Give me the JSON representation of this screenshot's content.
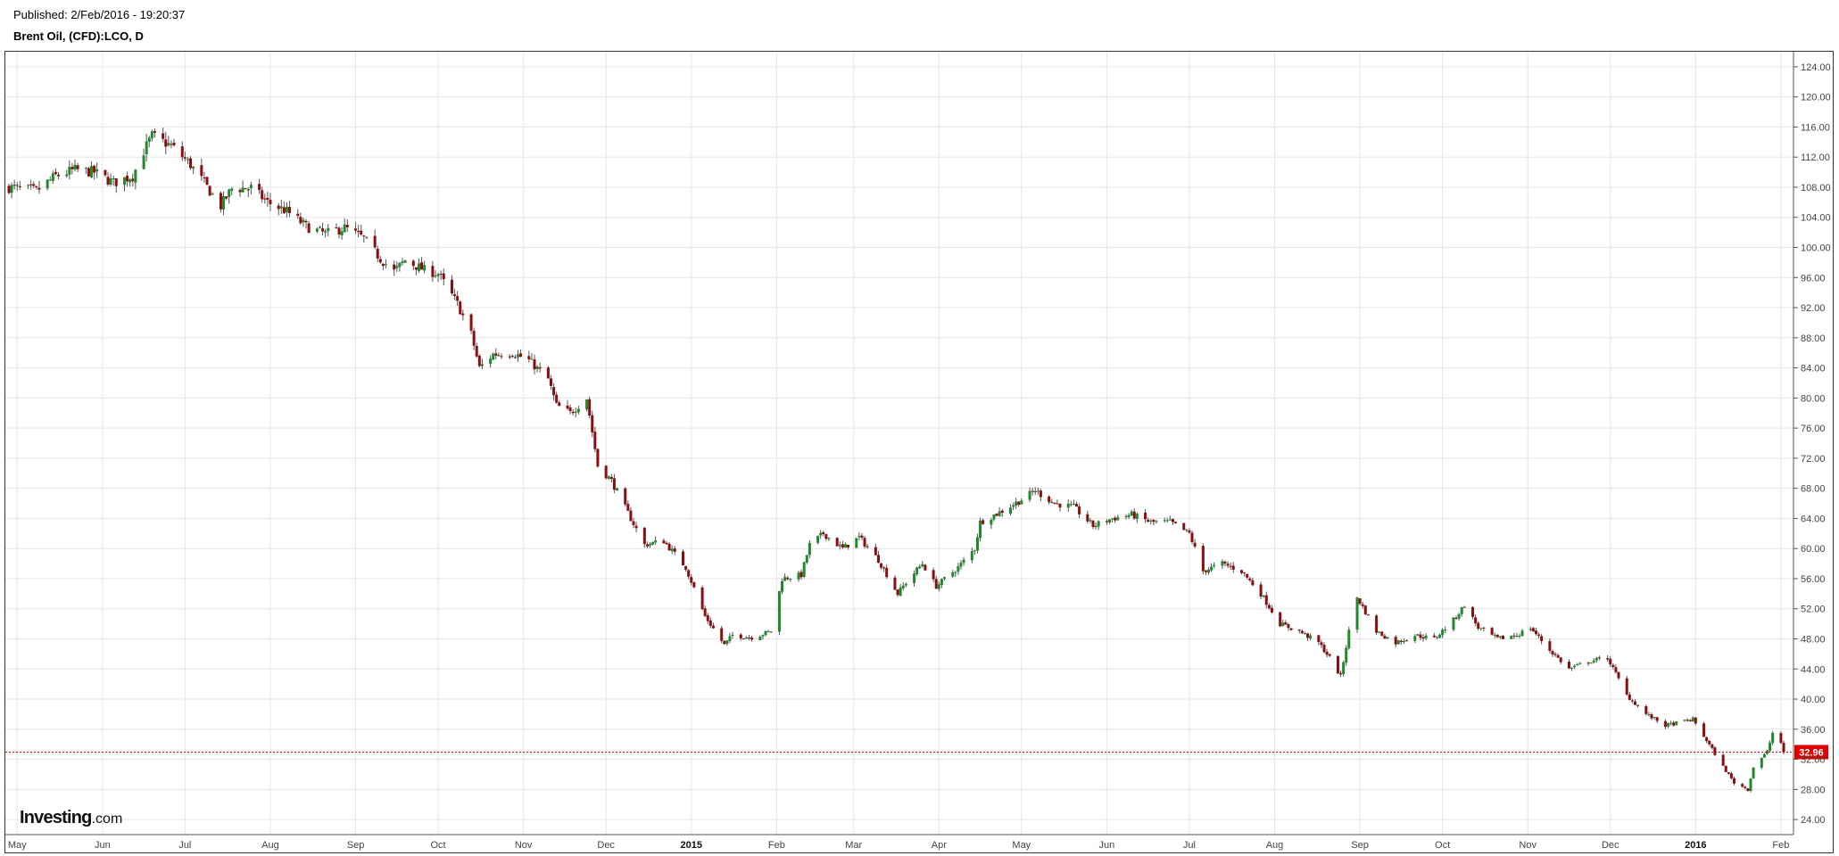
{
  "header": {
    "published": "Published: 2/Feb/2016 - 19:20:37",
    "symbol": "Brent Oil, (CFD):LCO, D"
  },
  "logo": {
    "brand": "Investing",
    "suffix": ".com"
  },
  "colors": {
    "up": "#1f8a2c",
    "down": "#8b0d0d",
    "grid": "#e6e6e6",
    "last_price": "#e00000"
  },
  "chart_data": {
    "type": "candlestick",
    "title": "Brent Oil, (CFD):LCO, D",
    "interval": "D",
    "ylim": [
      22,
      126
    ],
    "y_ticks": [
      "24.00",
      "28.00",
      "32.00",
      "36.00",
      "40.00",
      "44.00",
      "48.00",
      "52.00",
      "56.00",
      "60.00",
      "64.00",
      "68.00",
      "72.00",
      "76.00",
      "80.00",
      "84.00",
      "88.00",
      "92.00",
      "96.00",
      "100.00",
      "104.00",
      "108.00",
      "112.00",
      "116.00",
      "120.00",
      "124.00"
    ],
    "x_ticks": [
      {
        "label": "May",
        "date": "2014-05-01",
        "year": false
      },
      {
        "label": "Jun",
        "date": "2014-06-01",
        "year": false
      },
      {
        "label": "Jul",
        "date": "2014-07-01",
        "year": false
      },
      {
        "label": "Aug",
        "date": "2014-08-01",
        "year": false
      },
      {
        "label": "Sep",
        "date": "2014-09-01",
        "year": false
      },
      {
        "label": "Oct",
        "date": "2014-10-01",
        "year": false
      },
      {
        "label": "Nov",
        "date": "2014-11-01",
        "year": false
      },
      {
        "label": "Dec",
        "date": "2014-12-01",
        "year": false
      },
      {
        "label": "2015",
        "date": "2015-01-01",
        "year": true
      },
      {
        "label": "Feb",
        "date": "2015-02-01",
        "year": false
      },
      {
        "label": "Mar",
        "date": "2015-03-01",
        "year": false
      },
      {
        "label": "Apr",
        "date": "2015-04-01",
        "year": false
      },
      {
        "label": "May",
        "date": "2015-05-01",
        "year": false
      },
      {
        "label": "Jun",
        "date": "2015-06-01",
        "year": false
      },
      {
        "label": "Jul",
        "date": "2015-07-01",
        "year": false
      },
      {
        "label": "Aug",
        "date": "2015-08-01",
        "year": false
      },
      {
        "label": "Sep",
        "date": "2015-09-01",
        "year": false
      },
      {
        "label": "Oct",
        "date": "2015-10-01",
        "year": false
      },
      {
        "label": "Nov",
        "date": "2015-11-01",
        "year": false
      },
      {
        "label": "Dec",
        "date": "2015-12-01",
        "year": false
      },
      {
        "label": "2016",
        "date": "2016-01-01",
        "year": true
      },
      {
        "label": "Feb",
        "date": "2016-02-01",
        "year": false
      }
    ],
    "date_range": [
      "2014-04-28",
      "2016-02-02"
    ],
    "close_series": [
      [
        "2014-04-28",
        108.0
      ],
      [
        "2014-05-08",
        107.5
      ],
      [
        "2014-05-15",
        109.5
      ],
      [
        "2014-05-22",
        110.3
      ],
      [
        "2014-05-29",
        110.0
      ],
      [
        "2014-06-05",
        108.6
      ],
      [
        "2014-06-12",
        109.5
      ],
      [
        "2014-06-16",
        112.8
      ],
      [
        "2014-06-19",
        114.8
      ],
      [
        "2014-06-26",
        113.5
      ],
      [
        "2014-07-03",
        111.0
      ],
      [
        "2014-07-10",
        107.5
      ],
      [
        "2014-07-14",
        105.5
      ],
      [
        "2014-07-18",
        107.8
      ],
      [
        "2014-07-25",
        107.9
      ],
      [
        "2014-07-31",
        106.0
      ],
      [
        "2014-08-07",
        104.8
      ],
      [
        "2014-08-14",
        102.8
      ],
      [
        "2014-08-21",
        101.8
      ],
      [
        "2014-08-28",
        102.6
      ],
      [
        "2014-09-04",
        101.2
      ],
      [
        "2014-09-10",
        98.5
      ],
      [
        "2014-09-15",
        96.8
      ],
      [
        "2014-09-19",
        98.3
      ],
      [
        "2014-09-26",
        97.0
      ],
      [
        "2014-10-01",
        96.5
      ],
      [
        "2014-10-08",
        92.5
      ],
      [
        "2014-10-13",
        88.5
      ],
      [
        "2014-10-16",
        84.0
      ],
      [
        "2014-10-21",
        85.8
      ],
      [
        "2014-10-28",
        86.0
      ],
      [
        "2014-11-03",
        85.0
      ],
      [
        "2014-11-10",
        82.5
      ],
      [
        "2014-11-13",
        79.0
      ],
      [
        "2014-11-18",
        78.0
      ],
      [
        "2014-11-24",
        80.0
      ],
      [
        "2014-11-28",
        71.0
      ],
      [
        "2014-12-03",
        69.0
      ],
      [
        "2014-12-10",
        64.0
      ],
      [
        "2014-12-15",
        60.5
      ],
      [
        "2014-12-22",
        61.0
      ],
      [
        "2014-12-30",
        57.5
      ],
      [
        "2015-01-06",
        51.0
      ],
      [
        "2015-01-13",
        47.2
      ],
      [
        "2015-01-16",
        48.5
      ],
      [
        "2015-01-23",
        48.2
      ],
      [
        "2015-01-30",
        49.0
      ],
      [
        "2015-02-03",
        56.0
      ],
      [
        "2015-02-10",
        56.5
      ],
      [
        "2015-02-13",
        60.5
      ],
      [
        "2015-02-18",
        62.0
      ],
      [
        "2015-02-25",
        60.0
      ],
      [
        "2015-03-03",
        61.5
      ],
      [
        "2015-03-10",
        58.5
      ],
      [
        "2015-03-17",
        54.0
      ],
      [
        "2015-03-20",
        55.5
      ],
      [
        "2015-03-26",
        58.0
      ],
      [
        "2015-03-31",
        55.0
      ],
      [
        "2015-04-08",
        57.5
      ],
      [
        "2015-04-14",
        60.0
      ],
      [
        "2015-04-16",
        63.5
      ],
      [
        "2015-04-24",
        65.0
      ],
      [
        "2015-05-01",
        66.5
      ],
      [
        "2015-05-06",
        67.7
      ],
      [
        "2015-05-13",
        66.0
      ],
      [
        "2015-05-20",
        65.5
      ],
      [
        "2015-05-27",
        63.0
      ],
      [
        "2015-06-03",
        64.0
      ],
      [
        "2015-06-10",
        64.5
      ],
      [
        "2015-06-17",
        63.5
      ],
      [
        "2015-06-24",
        63.5
      ],
      [
        "2015-07-01",
        62.0
      ],
      [
        "2015-07-06",
        57.0
      ],
      [
        "2015-07-13",
        58.0
      ],
      [
        "2015-07-20",
        57.0
      ],
      [
        "2015-07-27",
        54.0
      ],
      [
        "2015-08-03",
        50.0
      ],
      [
        "2015-08-10",
        49.0
      ],
      [
        "2015-08-17",
        47.5
      ],
      [
        "2015-08-21",
        45.5
      ],
      [
        "2015-08-25",
        43.0
      ],
      [
        "2015-08-28",
        49.0
      ],
      [
        "2015-08-31",
        53.5
      ],
      [
        "2015-09-07",
        49.0
      ],
      [
        "2015-09-14",
        47.5
      ],
      [
        "2015-09-21",
        48.5
      ],
      [
        "2015-09-28",
        48.0
      ],
      [
        "2015-10-05",
        50.5
      ],
      [
        "2015-10-09",
        52.5
      ],
      [
        "2015-10-14",
        49.5
      ],
      [
        "2015-10-21",
        48.0
      ],
      [
        "2015-10-28",
        48.5
      ],
      [
        "2015-11-02",
        49.5
      ],
      [
        "2015-11-09",
        46.5
      ],
      [
        "2015-11-16",
        44.0
      ],
      [
        "2015-11-23",
        45.0
      ],
      [
        "2015-11-30",
        45.5
      ],
      [
        "2015-12-07",
        40.5
      ],
      [
        "2015-12-14",
        38.0
      ],
      [
        "2015-12-21",
        36.5
      ],
      [
        "2015-12-31",
        37.3
      ],
      [
        "2016-01-05",
        34.5
      ],
      [
        "2016-01-11",
        31.0
      ],
      [
        "2016-01-15",
        28.9
      ],
      [
        "2016-01-20",
        28.0
      ],
      [
        "2016-01-22",
        31.0
      ],
      [
        "2016-01-27",
        33.0
      ],
      [
        "2016-01-29",
        35.5
      ],
      [
        "2016-02-01",
        34.2
      ],
      [
        "2016-02-02",
        32.96
      ]
    ],
    "last_price": "32.96"
  }
}
